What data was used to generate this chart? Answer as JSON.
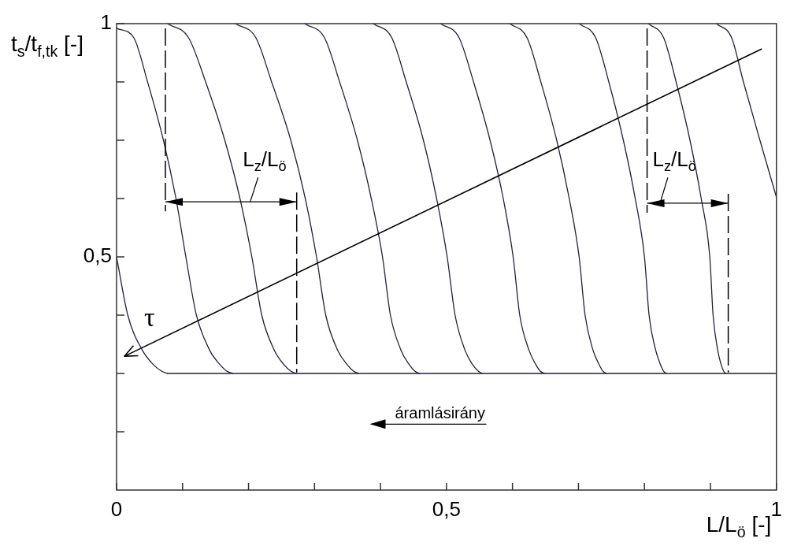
{
  "chart_data": {
    "type": "line",
    "xlabel": "L/L$_{ö}$ [-]",
    "ylabel": "t$_{s}$/t$_{f,tk}$ [-]",
    "xlim": [
      0,
      1
    ],
    "ylim": [
      0,
      1
    ],
    "xticks": [
      0,
      {
        "value": 0.1,
        "label": null
      },
      {
        "value": 0.2,
        "label": null
      },
      {
        "value": 0.3,
        "label": null
      },
      {
        "value": 0.4,
        "label": null
      },
      {
        "value": 0.5,
        "label": "0,5"
      },
      {
        "value": 0.6,
        "label": null
      },
      {
        "value": 0.7,
        "label": null
      },
      {
        "value": 0.8,
        "label": null
      },
      {
        "value": 0.9,
        "label": null
      },
      1
    ],
    "yticks": [
      {
        "value": 0.125,
        "label": null
      },
      {
        "value": 0.25,
        "label": null
      },
      {
        "value": 0.375,
        "label": null
      },
      {
        "value": 0.5,
        "label": "0,5"
      },
      {
        "value": 0.625,
        "label": null
      },
      {
        "value": 0.75,
        "label": null
      },
      {
        "value": 0.875,
        "label": null
      },
      1
    ],
    "marker": "none",
    "series": [
      {
        "color": "#1f2040",
        "x": [
          0,
          0.017,
          0.039,
          0.055,
          0.068,
          0.077
        ],
        "values": [
          0.5,
          0.375,
          0.3,
          0.27,
          0.255,
          0.25
        ]
      },
      {
        "color": "#1f2040",
        "x": [
          0,
          0.026,
          0.047,
          0.071,
          0.09,
          0.105,
          0.121,
          0.141,
          0.156,
          0.167,
          0.176
        ],
        "values": [
          0.99,
          0.97,
          0.875,
          0.75,
          0.625,
          0.5,
          0.375,
          0.3,
          0.27,
          0.255,
          0.25
        ]
      },
      {
        "color": "#1f2040",
        "x": [
          0.077,
          0.109,
          0.135,
          0.164,
          0.187,
          0.205,
          0.22,
          0.239,
          0.253,
          0.264,
          0.272
        ],
        "values": [
          1,
          0.97,
          0.875,
          0.75,
          0.625,
          0.5,
          0.375,
          0.3,
          0.27,
          0.255,
          0.25
        ]
      },
      {
        "color": "#1f2040",
        "x": [
          0.18,
          0.211,
          0.235,
          0.264,
          0.286,
          0.303,
          0.317,
          0.335,
          0.349,
          0.359,
          0.367
        ],
        "values": [
          1,
          0.97,
          0.875,
          0.75,
          0.625,
          0.5,
          0.375,
          0.3,
          0.27,
          0.255,
          0.25
        ]
      },
      {
        "color": "#1f2040",
        "x": [
          0.285,
          0.315,
          0.338,
          0.365,
          0.386,
          0.403,
          0.415,
          0.431,
          0.443,
          0.452,
          0.459
        ],
        "values": [
          1,
          0.97,
          0.875,
          0.75,
          0.625,
          0.5,
          0.375,
          0.3,
          0.27,
          0.255,
          0.25
        ]
      },
      {
        "color": "#1f2040",
        "x": [
          0.389,
          0.417,
          0.439,
          0.465,
          0.485,
          0.501,
          0.513,
          0.528,
          0.539,
          0.548,
          0.554
        ],
        "values": [
          1,
          0.97,
          0.875,
          0.75,
          0.625,
          0.5,
          0.375,
          0.3,
          0.27,
          0.255,
          0.25
        ]
      },
      {
        "color": "#1f2040",
        "x": [
          0.491,
          0.519,
          0.541,
          0.566,
          0.586,
          0.601,
          0.611,
          0.625,
          0.635,
          0.642,
          0.648
        ],
        "values": [
          1,
          0.97,
          0.875,
          0.75,
          0.625,
          0.5,
          0.375,
          0.3,
          0.27,
          0.255,
          0.25
        ]
      },
      {
        "color": "#1f2040",
        "x": [
          0.596,
          0.622,
          0.643,
          0.667,
          0.686,
          0.701,
          0.71,
          0.722,
          0.731,
          0.737,
          0.742
        ],
        "values": [
          1,
          0.97,
          0.875,
          0.75,
          0.625,
          0.5,
          0.375,
          0.3,
          0.27,
          0.255,
          0.25
        ]
      },
      {
        "color": "#1f2040",
        "x": [
          0.701,
          0.726,
          0.746,
          0.768,
          0.786,
          0.8,
          0.807,
          0.817,
          0.824,
          0.829,
          0.833
        ],
        "values": [
          1,
          0.97,
          0.875,
          0.75,
          0.625,
          0.5,
          0.375,
          0.3,
          0.27,
          0.255,
          0.25
        ]
      },
      {
        "color": "#1f2040",
        "x": [
          0.806,
          0.829,
          0.848,
          0.869,
          0.886,
          0.899,
          0.904,
          0.911,
          0.916,
          0.92,
          0.923
        ],
        "values": [
          1,
          0.97,
          0.875,
          0.75,
          0.625,
          0.5,
          0.375,
          0.3,
          0.27,
          0.255,
          0.25
        ]
      },
      {
        "color": "#1f2040",
        "x": [
          0.909,
          0.932,
          0.95,
          0.975,
          1
        ],
        "values": [
          1,
          0.97,
          0.875,
          0.75,
          0.628
        ]
      },
      {
        "color": "#1f2040",
        "x": [
          0.077,
          1
        ],
        "values": [
          0.25,
          0.25
        ]
      }
    ],
    "annotations": [
      "τ",
      "L$_{z}$/L$_{ö}$",
      "L$_{z}$/L$_{ö}$",
      "áramlásirány"
    ]
  }
}
